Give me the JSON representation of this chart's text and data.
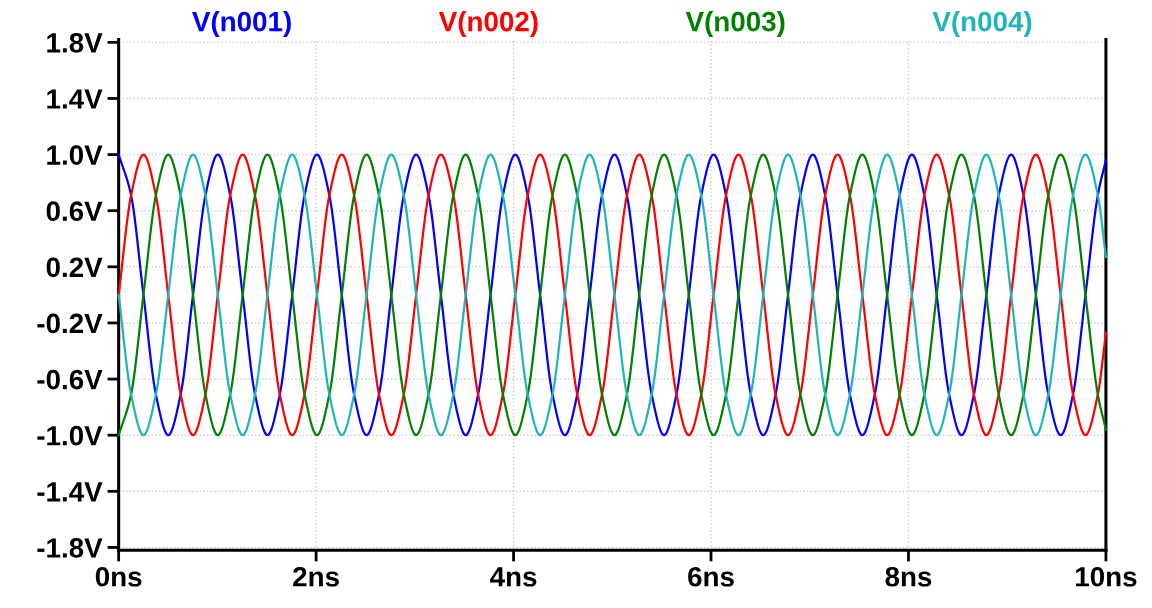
{
  "chart_data": {
    "type": "line",
    "x": [
      0,
      0.126,
      0.251,
      0.377,
      0.502,
      0.628,
      0.753,
      0.879,
      1.004,
      1.13,
      1.256,
      1.381,
      1.507,
      1.632,
      1.758,
      1.883,
      2.009,
      2.134,
      2.26,
      2.385,
      2.511,
      2.637,
      2.762,
      2.888,
      3.013,
      3.139,
      3.264,
      3.39,
      3.515,
      3.641,
      3.767,
      3.892,
      4.018,
      4.143,
      4.269,
      4.394,
      4.52,
      4.645,
      4.771,
      4.896,
      5.022,
      5.148,
      5.273,
      5.399,
      5.524,
      5.65,
      5.775,
      5.901,
      6.026,
      6.152,
      6.278,
      6.403,
      6.529,
      6.654,
      6.78,
      6.905,
      7.031,
      7.156,
      7.282,
      7.407,
      7.533,
      7.659,
      7.784,
      7.91,
      8.035,
      8.161,
      8.286,
      8.412,
      8.537,
      8.663,
      8.789,
      8.914,
      9.04,
      9.165,
      9.291,
      9.416,
      9.542,
      9.667,
      9.793,
      9.918,
      10
    ],
    "series": [
      {
        "name": "V(n001)",
        "color": "#0000ff",
        "values": [
          1,
          0.71,
          0,
          -0.71,
          -1,
          -0.71,
          0,
          0.71,
          1,
          0.71,
          0,
          -0.71,
          -1,
          -0.71,
          0,
          0.71,
          1,
          0.71,
          0,
          -0.71,
          -1,
          -0.71,
          0,
          0.71,
          1,
          0.71,
          0,
          -0.71,
          -1,
          -0.71,
          0,
          0.71,
          1,
          0.71,
          0,
          -0.71,
          -1,
          -0.71,
          0,
          0.71,
          1,
          0.71,
          0,
          -0.71,
          -1,
          -0.71,
          0,
          0.71,
          1,
          0.71,
          0,
          -0.71,
          -1,
          -0.71,
          0,
          0.71,
          1,
          0.71,
          0,
          -0.71,
          -1,
          -0.71,
          0,
          0.71,
          1,
          0.71,
          0,
          -0.71,
          -1,
          -0.71,
          0,
          0.71,
          1,
          0.71,
          0,
          -0.71,
          -1,
          -0.71,
          0,
          0.71,
          0.96
        ]
      },
      {
        "name": "V(n002)",
        "color": "#ff0000",
        "values": [
          0,
          0.71,
          1,
          0.71,
          0,
          -0.71,
          -1,
          -0.71,
          0,
          0.71,
          1,
          0.71,
          0,
          -0.71,
          -1,
          -0.71,
          0,
          0.71,
          1,
          0.71,
          0,
          -0.71,
          -1,
          -0.71,
          0,
          0.71,
          1,
          0.71,
          0,
          -0.71,
          -1,
          -0.71,
          0,
          0.71,
          1,
          0.71,
          0,
          -0.71,
          -1,
          -0.71,
          0,
          0.71,
          1,
          0.71,
          0,
          -0.71,
          -1,
          -0.71,
          0,
          0.71,
          1,
          0.71,
          0,
          -0.71,
          -1,
          -0.71,
          0,
          0.71,
          1,
          0.71,
          0,
          -0.71,
          -1,
          -0.71,
          0,
          0.71,
          1,
          0.71,
          0,
          -0.71,
          -1,
          -0.71,
          0,
          0.71,
          1,
          0.71,
          0,
          -0.71,
          -1,
          -0.71,
          -0.27
        ]
      },
      {
        "name": "V(n003)",
        "color": "#008000",
        "values": [
          -1,
          -0.71,
          0,
          0.71,
          1,
          0.71,
          0,
          -0.71,
          -1,
          -0.71,
          0,
          0.71,
          1,
          0.71,
          0,
          -0.71,
          -1,
          -0.71,
          0,
          0.71,
          1,
          0.71,
          0,
          -0.71,
          -1,
          -0.71,
          0,
          0.71,
          1,
          0.71,
          0,
          -0.71,
          -1,
          -0.71,
          0,
          0.71,
          1,
          0.71,
          0,
          -0.71,
          -1,
          -0.71,
          0,
          0.71,
          1,
          0.71,
          0,
          -0.71,
          -1,
          -0.71,
          0,
          0.71,
          1,
          0.71,
          0,
          -0.71,
          -1,
          -0.71,
          0,
          0.71,
          1,
          0.71,
          0,
          -0.71,
          -1,
          -0.71,
          0,
          0.71,
          1,
          0.71,
          0,
          -0.71,
          -1,
          -0.71,
          0,
          0.71,
          1,
          0.71,
          0,
          -0.71,
          -0.96
        ]
      },
      {
        "name": "V(n004)",
        "color": "#1fb5b5",
        "values": [
          0,
          -0.71,
          -1,
          -0.71,
          0,
          0.71,
          1,
          0.71,
          0,
          -0.71,
          -1,
          -0.71,
          0,
          0.71,
          1,
          0.71,
          0,
          -0.71,
          -1,
          -0.71,
          0,
          0.71,
          1,
          0.71,
          0,
          -0.71,
          -1,
          -0.71,
          0,
          0.71,
          1,
          0.71,
          0,
          -0.71,
          -1,
          -0.71,
          0,
          0.71,
          1,
          0.71,
          0,
          -0.71,
          -1,
          -0.71,
          0,
          0.71,
          1,
          0.71,
          0,
          -0.71,
          -1,
          -0.71,
          0,
          0.71,
          1,
          0.71,
          0,
          -0.71,
          -1,
          -0.71,
          0,
          0.71,
          1,
          0.71,
          0,
          -0.71,
          -1,
          -0.71,
          0,
          0.71,
          1,
          0.71,
          0,
          -0.71,
          -1,
          -0.71,
          0,
          0.71,
          1,
          0.71,
          0.27
        ]
      }
    ],
    "xlim": [
      0,
      10
    ],
    "xticks": [
      {
        "value": 0,
        "label": "0ns"
      },
      {
        "value": 2,
        "label": "2ns"
      },
      {
        "value": 4,
        "label": "4ns"
      },
      {
        "value": 6,
        "label": "6ns"
      },
      {
        "value": 8,
        "label": "8ns"
      },
      {
        "value": 10,
        "label": "10ns"
      }
    ],
    "ylim": [
      -1.82,
      1.82
    ],
    "yticks": [
      {
        "value": -1.8,
        "label": "-1.8V"
      },
      {
        "value": -1.4,
        "label": "-1.4V"
      },
      {
        "value": -1.0,
        "label": "-1.0V"
      },
      {
        "value": -0.6,
        "label": "-0.6V"
      },
      {
        "value": -0.2,
        "label": "-0.2V"
      },
      {
        "value": 0.2,
        "label": "0.2V"
      },
      {
        "value": 0.6,
        "label": "0.6V"
      },
      {
        "value": 1.0,
        "label": "1.0V"
      },
      {
        "value": 1.4,
        "label": "1.4V"
      },
      {
        "value": 1.8,
        "label": "1.8V"
      }
    ],
    "grid": true,
    "legend": "top",
    "marker": "none",
    "line_style": "solid"
  }
}
